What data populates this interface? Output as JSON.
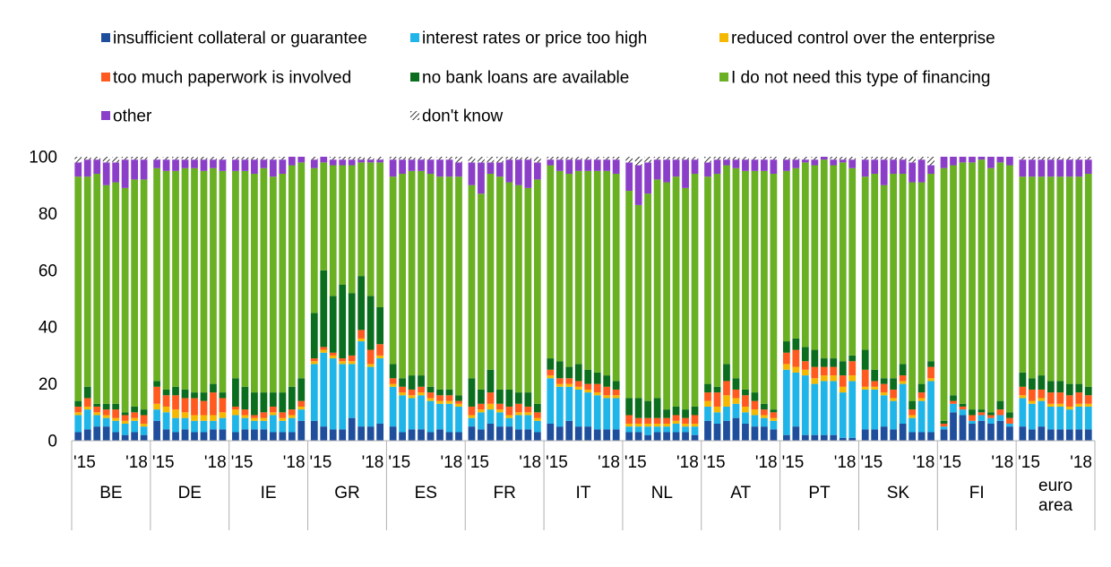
{
  "chart_data": {
    "type": "bar",
    "stacked": true,
    "ylim": [
      0,
      100
    ],
    "yticks": [
      0,
      20,
      40,
      60,
      80,
      100
    ],
    "grid": false,
    "legend_position": "top",
    "period_labels": [
      "'15",
      "'18"
    ],
    "legend": [
      {
        "name": "insufficient collateral or guarantee",
        "color": "#1f4e9c"
      },
      {
        "name": "interest rates or price too high",
        "color": "#1fb5e8"
      },
      {
        "name": "reduced control over the enterprise",
        "color": "#f5b800"
      },
      {
        "name": "too much paperwork is involved",
        "color": "#ff5a1f"
      },
      {
        "name": "no bank loans are available",
        "color": "#0b6e1e"
      },
      {
        "name": "I do not need this type of financing",
        "color": "#6ab023"
      },
      {
        "name": "other",
        "color": "#8b3fc8"
      },
      {
        "name": "don't know",
        "color": "hatch"
      }
    ],
    "groups": [
      {
        "label": "BE",
        "bars": [
          [
            3,
            6,
            1,
            2,
            2,
            79,
            5,
            2
          ],
          [
            4,
            7,
            1,
            3,
            4,
            74,
            6,
            1
          ],
          [
            5,
            4,
            1,
            2,
            1,
            81,
            5,
            1
          ],
          [
            5,
            3,
            1,
            2,
            2,
            77,
            8,
            2
          ],
          [
            3,
            4,
            1,
            3,
            2,
            78,
            7,
            2
          ],
          [
            2,
            4,
            1,
            2,
            1,
            79,
            10,
            1
          ],
          [
            3,
            4,
            1,
            2,
            2,
            80,
            7,
            1
          ],
          [
            2,
            3,
            1,
            3,
            2,
            81,
            7,
            1
          ]
        ]
      },
      {
        "label": "DE",
        "bars": [
          [
            7,
            4,
            2,
            6,
            2,
            75,
            3,
            1
          ],
          [
            4,
            6,
            2,
            4,
            2,
            77,
            4,
            1
          ],
          [
            3,
            5,
            3,
            5,
            3,
            76,
            4,
            1
          ],
          [
            4,
            4,
            2,
            5,
            3,
            78,
            3,
            1
          ],
          [
            3,
            4,
            2,
            6,
            2,
            79,
            3,
            1
          ],
          [
            3,
            4,
            2,
            5,
            3,
            78,
            4,
            1
          ],
          [
            4,
            3,
            2,
            8,
            3,
            76,
            3,
            1
          ],
          [
            4,
            4,
            2,
            5,
            2,
            78,
            4,
            1
          ]
        ]
      },
      {
        "label": "IE",
        "bars": [
          [
            3,
            6,
            2,
            1,
            10,
            73,
            4,
            1
          ],
          [
            4,
            4,
            1,
            2,
            8,
            76,
            4,
            1
          ],
          [
            4,
            3,
            1,
            1,
            8,
            77,
            5,
            1
          ],
          [
            4,
            3,
            1,
            2,
            7,
            79,
            3,
            1
          ],
          [
            3,
            6,
            1,
            2,
            5,
            76,
            6,
            1
          ],
          [
            3,
            4,
            1,
            2,
            7,
            77,
            5,
            1
          ],
          [
            3,
            5,
            1,
            2,
            8,
            78,
            3,
            0
          ],
          [
            7,
            4,
            1,
            2,
            8,
            76,
            2,
            0
          ]
        ]
      },
      {
        "label": "GR",
        "bars": [
          [
            7,
            20,
            1,
            1,
            16,
            51,
            3,
            1
          ],
          [
            5,
            26,
            1,
            1,
            27,
            38,
            2,
            0
          ],
          [
            4,
            25,
            1,
            1,
            20,
            46,
            2,
            1
          ],
          [
            4,
            23,
            1,
            1,
            26,
            42,
            2,
            1
          ],
          [
            8,
            19,
            1,
            2,
            22,
            45,
            2,
            1
          ],
          [
            5,
            30,
            1,
            3,
            19,
            40,
            1,
            1
          ],
          [
            5,
            21,
            1,
            5,
            19,
            47,
            1,
            1
          ],
          [
            6,
            23,
            1,
            4,
            13,
            51,
            1,
            1
          ]
        ]
      },
      {
        "label": "ES",
        "bars": [
          [
            5,
            14,
            1,
            2,
            5,
            66,
            6,
            1
          ],
          [
            3,
            13,
            1,
            2,
            3,
            72,
            5,
            1
          ],
          [
            4,
            11,
            1,
            2,
            5,
            72,
            4,
            1
          ],
          [
            4,
            12,
            1,
            2,
            4,
            72,
            4,
            1
          ],
          [
            3,
            11,
            1,
            2,
            2,
            75,
            5,
            1
          ],
          [
            4,
            9,
            1,
            2,
            2,
            75,
            6,
            1
          ],
          [
            3,
            10,
            1,
            2,
            2,
            75,
            6,
            1
          ],
          [
            3,
            9,
            1,
            1,
            2,
            77,
            5,
            2
          ]
        ]
      },
      {
        "label": "FR",
        "bars": [
          [
            5,
            3,
            1,
            3,
            10,
            68,
            8,
            2
          ],
          [
            4,
            6,
            1,
            2,
            5,
            69,
            11,
            2
          ],
          [
            6,
            5,
            2,
            4,
            8,
            69,
            4,
            2
          ],
          [
            5,
            5,
            1,
            2,
            5,
            75,
            5,
            2
          ],
          [
            5,
            3,
            1,
            3,
            6,
            73,
            8,
            1
          ],
          [
            4,
            5,
            1,
            3,
            4,
            73,
            9,
            1
          ],
          [
            4,
            5,
            1,
            2,
            5,
            72,
            10,
            1
          ],
          [
            3,
            4,
            1,
            2,
            3,
            79,
            6,
            2
          ]
        ]
      },
      {
        "label": "IT",
        "bars": [
          [
            6,
            16,
            1,
            2,
            4,
            68,
            2,
            1
          ],
          [
            5,
            14,
            1,
            2,
            6,
            67,
            4,
            1
          ],
          [
            7,
            12,
            1,
            2,
            4,
            68,
            5,
            1
          ],
          [
            5,
            13,
            1,
            2,
            6,
            68,
            4,
            1
          ],
          [
            5,
            12,
            1,
            2,
            5,
            70,
            4,
            1
          ],
          [
            4,
            12,
            1,
            3,
            4,
            71,
            4,
            1
          ],
          [
            4,
            11,
            1,
            3,
            4,
            72,
            4,
            1
          ],
          [
            4,
            11,
            1,
            2,
            3,
            73,
            5,
            1
          ]
        ]
      },
      {
        "label": "NL",
        "bars": [
          [
            3,
            2,
            1,
            3,
            6,
            73,
            10,
            2
          ],
          [
            3,
            2,
            1,
            2,
            7,
            68,
            14,
            3
          ],
          [
            2,
            3,
            1,
            2,
            6,
            73,
            11,
            2
          ],
          [
            3,
            2,
            1,
            2,
            7,
            77,
            7,
            1
          ],
          [
            3,
            2,
            1,
            2,
            3,
            80,
            8,
            1
          ],
          [
            3,
            3,
            1,
            2,
            3,
            81,
            6,
            1
          ],
          [
            3,
            2,
            1,
            2,
            3,
            78,
            10,
            1
          ],
          [
            2,
            3,
            1,
            3,
            3,
            82,
            5,
            1
          ]
        ]
      },
      {
        "label": "AT",
        "bars": [
          [
            7,
            5,
            2,
            3,
            3,
            73,
            5,
            2
          ],
          [
            6,
            4,
            2,
            5,
            2,
            75,
            5,
            1
          ],
          [
            7,
            5,
            4,
            5,
            6,
            70,
            2,
            1
          ],
          [
            8,
            5,
            2,
            3,
            4,
            74,
            3,
            1
          ],
          [
            6,
            4,
            2,
            4,
            2,
            77,
            4,
            1
          ],
          [
            5,
            4,
            2,
            3,
            3,
            78,
            4,
            1
          ],
          [
            5,
            3,
            1,
            2,
            2,
            82,
            4,
            1
          ],
          [
            4,
            3,
            1,
            2,
            1,
            83,
            5,
            1
          ]
        ]
      },
      {
        "label": "PT",
        "bars": [
          [
            2,
            23,
            2,
            4,
            4,
            60,
            4,
            1
          ],
          [
            5,
            19,
            2,
            6,
            4,
            60,
            3,
            1
          ],
          [
            2,
            21,
            2,
            3,
            5,
            65,
            1,
            1
          ],
          [
            2,
            18,
            2,
            4,
            6,
            65,
            2,
            1
          ],
          [
            2,
            19,
            2,
            3,
            3,
            70,
            1,
            0
          ],
          [
            2,
            19,
            2,
            3,
            3,
            68,
            2,
            1
          ],
          [
            1,
            16,
            2,
            4,
            5,
            70,
            1,
            1
          ],
          [
            1,
            20,
            2,
            5,
            2,
            66,
            3,
            1
          ]
        ]
      },
      {
        "label": "SK",
        "bars": [
          [
            4,
            14,
            1,
            6,
            7,
            61,
            6,
            1
          ],
          [
            4,
            14,
            1,
            2,
            4,
            69,
            5,
            1
          ],
          [
            5,
            11,
            1,
            3,
            2,
            68,
            9,
            1
          ],
          [
            4,
            10,
            1,
            3,
            4,
            72,
            5,
            1
          ],
          [
            6,
            14,
            1,
            2,
            4,
            67,
            5,
            1
          ],
          [
            3,
            5,
            1,
            2,
            3,
            77,
            7,
            2
          ],
          [
            3,
            11,
            1,
            2,
            3,
            71,
            8,
            1
          ],
          [
            3,
            18,
            1,
            4,
            2,
            66,
            3,
            3
          ]
        ]
      },
      {
        "label": "FI",
        "bars": [
          [
            4,
            1,
            0,
            1,
            1,
            89,
            4,
            0
          ],
          [
            10,
            3,
            0,
            1,
            2,
            81,
            3,
            0
          ],
          [
            9,
            2,
            0,
            1,
            1,
            85,
            2,
            0
          ],
          [
            6,
            1,
            0,
            2,
            2,
            87,
            2,
            0
          ],
          [
            7,
            2,
            0,
            1,
            1,
            88,
            1,
            0
          ],
          [
            6,
            2,
            0,
            1,
            1,
            86,
            4,
            0
          ],
          [
            7,
            2,
            0,
            2,
            3,
            84,
            2,
            0
          ],
          [
            5,
            1,
            0,
            2,
            2,
            87,
            3,
            0
          ]
        ]
      },
      {
        "label": "euro area",
        "bars": [
          [
            5,
            10,
            1,
            3,
            5,
            69,
            6,
            1
          ],
          [
            4,
            9,
            1,
            4,
            4,
            71,
            6,
            1
          ],
          [
            5,
            9,
            1,
            3,
            5,
            70,
            6,
            1
          ],
          [
            4,
            8,
            1,
            4,
            4,
            72,
            6,
            1
          ],
          [
            4,
            8,
            1,
            4,
            4,
            72,
            6,
            1
          ],
          [
            4,
            7,
            1,
            4,
            4,
            73,
            6,
            1
          ],
          [
            4,
            8,
            1,
            4,
            3,
            73,
            6,
            1
          ],
          [
            4,
            8,
            1,
            3,
            3,
            75,
            5,
            1
          ]
        ]
      }
    ]
  }
}
